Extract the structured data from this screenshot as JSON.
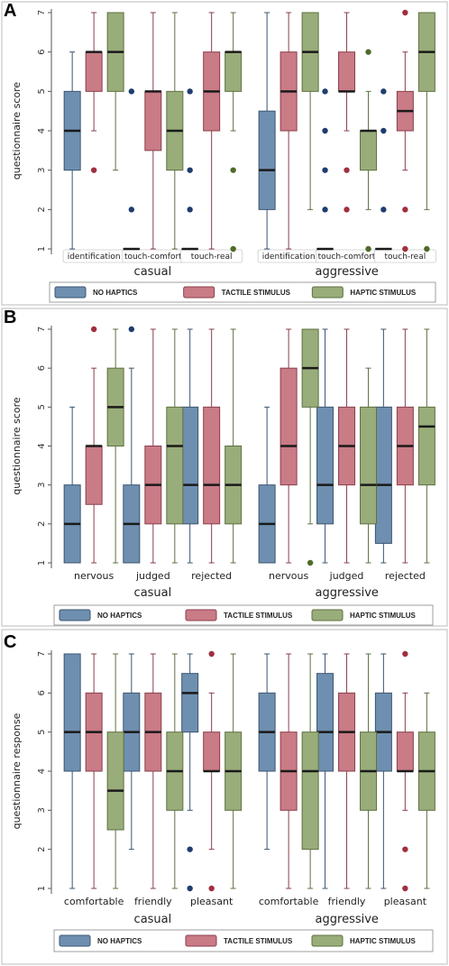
{
  "colors": {
    "no_haptics": "#6f8fb0",
    "tactile": "#c97b86",
    "haptic": "#99ad7a",
    "no_haptics_outline": "#3b5570",
    "tactile_outline": "#8a3f4b",
    "haptic_outline": "#5e7040",
    "median": "#1a1a1a",
    "outlier_no_haptics": "#1f3d6e",
    "outlier_tactile": "#a0303f",
    "outlier_haptic": "#4f6b2a"
  },
  "legend": [
    "NO HAPTICS",
    "TACTILE STIMULUS",
    "HAPTIC STIMULUS"
  ],
  "chart_data": [
    {
      "type": "box",
      "panel": "A",
      "ylabel": "questionnaire score",
      "ylim": [
        1,
        7
      ],
      "yticks": [
        "1",
        "2",
        "3",
        "4",
        "5",
        "6",
        "7"
      ],
      "groups": [
        "casual",
        "aggressive"
      ],
      "categories": [
        "identification",
        "touch-comfort",
        "touch-real",
        "identification",
        "touch-comfort",
        "touch-real"
      ],
      "series": [
        {
          "name": "NO HAPTICS",
          "boxes": [
            {
              "min": 1,
              "q1": 3,
              "median": 4,
              "q3": 5,
              "max": 6,
              "outliers": []
            },
            {
              "min": 1,
              "q1": 1,
              "median": 1,
              "q3": 1,
              "max": 1,
              "outliers": [
                2,
                5
              ]
            },
            {
              "min": 1,
              "q1": 1,
              "median": 1,
              "q3": 1,
              "max": 1,
              "outliers": [
                2,
                3,
                5
              ]
            },
            {
              "min": 1,
              "q1": 2,
              "median": 3,
              "q3": 4.5,
              "max": 7,
              "outliers": []
            },
            {
              "min": 1,
              "q1": 1,
              "median": 1,
              "q3": 1,
              "max": 1,
              "outliers": [
                2,
                3,
                4,
                5
              ]
            },
            {
              "min": 1,
              "q1": 1,
              "median": 1,
              "q3": 1,
              "max": 1,
              "outliers": [
                2,
                4,
                5
              ]
            }
          ]
        },
        {
          "name": "TACTILE STIMULUS",
          "boxes": [
            {
              "min": 4,
              "q1": 5,
              "median": 6,
              "q3": 6,
              "max": 7,
              "outliers": [
                3
              ]
            },
            {
              "min": 1,
              "q1": 3.5,
              "median": 5,
              "q3": 5,
              "max": 7,
              "outliers": []
            },
            {
              "min": 1,
              "q1": 4,
              "median": 5,
              "q3": 6,
              "max": 7,
              "outliers": []
            },
            {
              "min": 1,
              "q1": 4,
              "median": 5,
              "q3": 6,
              "max": 7,
              "outliers": []
            },
            {
              "min": 4,
              "q1": 5,
              "median": 5,
              "q3": 6,
              "max": 7,
              "outliers": [
                2,
                3
              ]
            },
            {
              "min": 3,
              "q1": 4,
              "median": 4.5,
              "q3": 5,
              "max": 6,
              "outliers": [
                1,
                2,
                7
              ]
            }
          ]
        },
        {
          "name": "HAPTIC STIMULUS",
          "boxes": [
            {
              "min": 3,
              "q1": 5,
              "median": 6,
              "q3": 7,
              "max": 7,
              "outliers": []
            },
            {
              "min": 1,
              "q1": 3,
              "median": 4,
              "q3": 5,
              "max": 7,
              "outliers": []
            },
            {
              "min": 4,
              "q1": 5,
              "median": 6,
              "q3": 6,
              "max": 7,
              "outliers": [
                1,
                3
              ]
            },
            {
              "min": 2,
              "q1": 5,
              "median": 6,
              "q3": 7,
              "max": 7,
              "outliers": []
            },
            {
              "min": 2,
              "q1": 3,
              "median": 4,
              "q3": 4,
              "max": 5,
              "outliers": [
                1,
                6
              ]
            },
            {
              "min": 2,
              "q1": 5,
              "median": 6,
              "q3": 7,
              "max": 7,
              "outliers": [
                1
              ]
            }
          ]
        }
      ]
    },
    {
      "type": "box",
      "panel": "B",
      "ylabel": "questionnaire score",
      "ylim": [
        1,
        7
      ],
      "yticks": [
        "1",
        "2",
        "3",
        "4",
        "5",
        "6",
        "7"
      ],
      "groups": [
        "casual",
        "aggressive"
      ],
      "categories": [
        "nervous",
        "judged",
        "rejected",
        "nervous",
        "judged",
        "rejected"
      ],
      "series": [
        {
          "name": "NO HAPTICS",
          "boxes": [
            {
              "min": 1,
              "q1": 1,
              "median": 2,
              "q3": 3,
              "max": 5,
              "outliers": []
            },
            {
              "min": 1,
              "q1": 1,
              "median": 2,
              "q3": 3,
              "max": 6,
              "outliers": [
                7
              ]
            },
            {
              "min": 1,
              "q1": 2,
              "median": 3,
              "q3": 5,
              "max": 7,
              "outliers": []
            },
            {
              "min": 1,
              "q1": 1,
              "median": 2,
              "q3": 3,
              "max": 5,
              "outliers": []
            },
            {
              "min": 1,
              "q1": 2,
              "median": 3,
              "q3": 5,
              "max": 7,
              "outliers": []
            },
            {
              "min": 1,
              "q1": 1.5,
              "median": 3,
              "q3": 5,
              "max": 7,
              "outliers": []
            }
          ]
        },
        {
          "name": "TACTILE STIMULUS",
          "boxes": [
            {
              "min": 1,
              "q1": 2.5,
              "median": 4,
              "q3": 4,
              "max": 6,
              "outliers": [
                7
              ]
            },
            {
              "min": 1,
              "q1": 2,
              "median": 3,
              "q3": 4,
              "max": 7,
              "outliers": []
            },
            {
              "min": 1,
              "q1": 2,
              "median": 3,
              "q3": 5,
              "max": 7,
              "outliers": []
            },
            {
              "min": 1,
              "q1": 3,
              "median": 4,
              "q3": 6,
              "max": 7,
              "outliers": []
            },
            {
              "min": 1,
              "q1": 3,
              "median": 4,
              "q3": 5,
              "max": 7,
              "outliers": []
            },
            {
              "min": 1,
              "q1": 3,
              "median": 4,
              "q3": 5,
              "max": 7,
              "outliers": []
            }
          ]
        },
        {
          "name": "HAPTIC STIMULUS",
          "boxes": [
            {
              "min": 1,
              "q1": 4,
              "median": 5,
              "q3": 6,
              "max": 7,
              "outliers": []
            },
            {
              "min": 1,
              "q1": 2,
              "median": 4,
              "q3": 5,
              "max": 7,
              "outliers": []
            },
            {
              "min": 1,
              "q1": 2,
              "median": 3,
              "q3": 4,
              "max": 7,
              "outliers": []
            },
            {
              "min": 2,
              "q1": 5,
              "median": 6,
              "q3": 7,
              "max": 7,
              "outliers": [
                1
              ]
            },
            {
              "min": 1,
              "q1": 2,
              "median": 3,
              "q3": 5,
              "max": 6,
              "outliers": []
            },
            {
              "min": 1,
              "q1": 3,
              "median": 4.5,
              "q3": 5,
              "max": 7,
              "outliers": []
            }
          ]
        }
      ]
    },
    {
      "type": "box",
      "panel": "C",
      "ylabel": "questionnaire response",
      "ylim": [
        1,
        7
      ],
      "yticks": [
        "1",
        "2",
        "3",
        "4",
        "5",
        "6",
        "7"
      ],
      "groups": [
        "casual",
        "aggressive"
      ],
      "categories": [
        "comfortable",
        "friendly",
        "pleasant",
        "comfortable",
        "friendly",
        "pleasant"
      ],
      "series": [
        {
          "name": "NO HAPTICS",
          "boxes": [
            {
              "min": 1,
              "q1": 4,
              "median": 5,
              "q3": 7,
              "max": 7,
              "outliers": []
            },
            {
              "min": 2,
              "q1": 4,
              "median": 5,
              "q3": 6,
              "max": 7,
              "outliers": []
            },
            {
              "min": 3,
              "q1": 5,
              "median": 6,
              "q3": 6.5,
              "max": 7,
              "outliers": [
                1,
                2
              ]
            },
            {
              "min": 2,
              "q1": 4,
              "median": 5,
              "q3": 6,
              "max": 7,
              "outliers": []
            },
            {
              "min": 1,
              "q1": 4,
              "median": 5,
              "q3": 6.5,
              "max": 7,
              "outliers": []
            },
            {
              "min": 1,
              "q1": 4,
              "median": 5,
              "q3": 6,
              "max": 7,
              "outliers": []
            }
          ]
        },
        {
          "name": "TACTILE STIMULUS",
          "boxes": [
            {
              "min": 1,
              "q1": 4,
              "median": 5,
              "q3": 6,
              "max": 7,
              "outliers": []
            },
            {
              "min": 1,
              "q1": 4,
              "median": 5,
              "q3": 6,
              "max": 7,
              "outliers": []
            },
            {
              "min": 2,
              "q1": 4,
              "median": 4,
              "q3": 5,
              "max": 6,
              "outliers": [
                1,
                7
              ]
            },
            {
              "min": 1,
              "q1": 3,
              "median": 4,
              "q3": 5,
              "max": 7,
              "outliers": []
            },
            {
              "min": 1,
              "q1": 4,
              "median": 5,
              "q3": 6,
              "max": 7,
              "outliers": []
            },
            {
              "min": 3,
              "q1": 4,
              "median": 4,
              "q3": 5,
              "max": 6,
              "outliers": [
                1,
                2,
                7
              ]
            }
          ]
        },
        {
          "name": "HAPTIC STIMULUS",
          "boxes": [
            {
              "min": 1,
              "q1": 2.5,
              "median": 3.5,
              "q3": 5,
              "max": 7,
              "outliers": []
            },
            {
              "min": 1,
              "q1": 3,
              "median": 4,
              "q3": 5,
              "max": 7,
              "outliers": []
            },
            {
              "min": 1,
              "q1": 3,
              "median": 4,
              "q3": 5,
              "max": 7,
              "outliers": []
            },
            {
              "min": 1,
              "q1": 2,
              "median": 4,
              "q3": 5,
              "max": 7,
              "outliers": []
            },
            {
              "min": 1,
              "q1": 3,
              "median": 4,
              "q3": 5,
              "max": 7,
              "outliers": []
            },
            {
              "min": 1,
              "q1": 3,
              "median": 4,
              "q3": 5,
              "max": 6,
              "outliers": []
            }
          ]
        }
      ]
    }
  ]
}
